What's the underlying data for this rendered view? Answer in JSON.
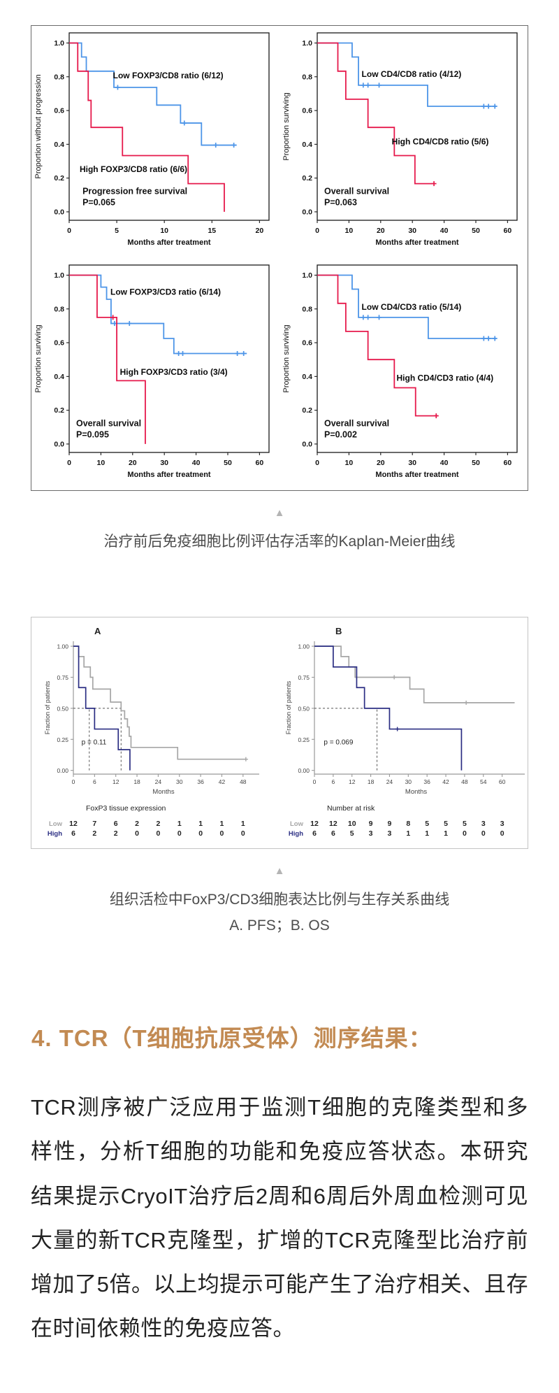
{
  "icons": {
    "scroll_up_triangle": "▲"
  },
  "colors": {
    "km_blue": "#4d95e8",
    "km_red": "#e6194b",
    "fig2_navy": "#2b2e83",
    "fig2_gray": "#a6a6a6",
    "heading_gold": "#c28a52",
    "caption_gray": "#4c4c4c",
    "triangle_gray": "#b4b4b4"
  },
  "figure1": {
    "caption": "治疗前后免疫细胞比例评估存活率的Kaplan-Meier曲线"
  },
  "figure2": {
    "caption_line1": "组织活检中FoxP3/CD3细胞表达比例与生存关系曲线",
    "caption_line2": "A. PFS；B. OS"
  },
  "section": {
    "heading": "4. TCR（T细胞抗原受体）测序结果：",
    "body": "TCR测序被广泛应用于监测T细胞的克隆类型和多样性，分析T细胞的功能和免疫应答状态。本研究结果提示CryoIT治疗后2周和6周后外周血检测可见大量的新TCR克隆型，扩增的TCR克隆型比治疗前增加了5倍。以上均提示可能产生了治疗相关、且存在时间依赖性的免疫应答。"
  },
  "chart_data": [
    {
      "id": "pfs-foxp3-cd8",
      "type": "line",
      "style": "km-boxed",
      "ylabel": "Proportion without progression",
      "xlabel": "Months after treatment",
      "xlim": [
        0,
        21
      ],
      "ylim": [
        0,
        1
      ],
      "ytick_decimals": 1,
      "xticks": [
        0,
        5,
        10,
        15,
        20
      ],
      "yticks": [
        0.0,
        0.2,
        0.4,
        0.6,
        0.8,
        1.0
      ],
      "series": [
        {
          "name": "Low FOXP3/CD8 ratio (6/12)",
          "color": "#4d95e8",
          "drops": [
            [
              0,
              1
            ],
            [
              1.3,
              0.917
            ],
            [
              1.8,
              0.833
            ],
            [
              4.7,
              0.737
            ],
            [
              9.2,
              0.632
            ],
            [
              11.7,
              0.526
            ],
            [
              13.9,
              0.395
            ]
          ],
          "end": 17.6,
          "censors": [
            [
              5.1,
              0.737
            ],
            [
              12.1,
              0.526
            ],
            [
              15.4,
              0.395
            ],
            [
              17.3,
              0.395
            ]
          ],
          "label": {
            "text": "Low FOXP3/CD8 ratio (6/12)",
            "x": 4.6,
            "y": 0.79
          }
        },
        {
          "name": "High FOXP3/CD8 ratio (6/6)",
          "color": "#e6194b",
          "drops": [
            [
              0,
              1
            ],
            [
              0.9,
              0.833
            ],
            [
              2.0,
              0.66
            ],
            [
              2.3,
              0.5
            ],
            [
              5.6,
              0.333
            ],
            [
              12.5,
              0.167
            ],
            [
              16.3,
              0
            ]
          ],
          "end": 16.3,
          "censors": [],
          "label": {
            "text": "High FOXP3/CD8 ratio (6/6)",
            "x": 1.1,
            "y": 0.235
          }
        }
      ],
      "note": {
        "lines": [
          "Progression free survival",
          "P=0.065"
        ],
        "x": 1.4,
        "y": 0.105
      }
    },
    {
      "id": "os-cd4-cd8",
      "type": "line",
      "style": "km-boxed",
      "ylabel": "Proportion surviving",
      "xlabel": "Months after treatment",
      "xlim": [
        0,
        63
      ],
      "ylim": [
        0,
        1
      ],
      "ytick_decimals": 1,
      "xticks": [
        0,
        10,
        20,
        30,
        40,
        50,
        60
      ],
      "yticks": [
        0.0,
        0.2,
        0.4,
        0.6,
        0.8,
        1.0
      ],
      "series": [
        {
          "name": "Low CD4/CD8 ratio (4/12)",
          "color": "#4d95e8",
          "drops": [
            [
              0,
              1
            ],
            [
              11,
              0.917
            ],
            [
              13,
              0.75
            ],
            [
              34.8,
              0.625
            ]
          ],
          "end": 56.5,
          "censors": [
            [
              14.5,
              0.75
            ],
            [
              16,
              0.75
            ],
            [
              19.5,
              0.75
            ],
            [
              52.5,
              0.625
            ],
            [
              54,
              0.625
            ],
            [
              56,
              0.625
            ]
          ],
          "label": {
            "text": "Low CD4/CD8 ratio (4/12)",
            "x": 14,
            "y": 0.8
          }
        },
        {
          "name": "High CD4/CD8 ratio (5/6)",
          "color": "#e6194b",
          "drops": [
            [
              0,
              1
            ],
            [
              6.5,
              0.833
            ],
            [
              9,
              0.667
            ],
            [
              16,
              0.5
            ],
            [
              24.3,
              0.333
            ],
            [
              30.8,
              0.167
            ]
          ],
          "end": 37,
          "censors": [
            [
              36.8,
              0.167
            ]
          ],
          "label": {
            "text": "High CD4/CD8 ratio (5/6)",
            "x": 23.5,
            "y": 0.4
          }
        }
      ],
      "note": {
        "lines": [
          "Overall survival",
          "P=0.063"
        ],
        "x": 2.2,
        "y": 0.105
      }
    },
    {
      "id": "os-foxp3-cd3",
      "type": "line",
      "style": "km-boxed",
      "ylabel": "Proportion surviving",
      "xlabel": "Months after treatment",
      "xlim": [
        0,
        63
      ],
      "ylim": [
        0,
        1
      ],
      "ytick_decimals": 1,
      "xticks": [
        0,
        10,
        20,
        30,
        40,
        50,
        60
      ],
      "yticks": [
        0.0,
        0.2,
        0.4,
        0.6,
        0.8,
        1.0
      ],
      "series": [
        {
          "name": "Low FOXP3/CD3 ratio (6/14)",
          "color": "#4d95e8",
          "drops": [
            [
              0,
              1
            ],
            [
              10,
              0.929
            ],
            [
              11.8,
              0.857
            ],
            [
              13.2,
              0.714
            ],
            [
              29.8,
              0.625
            ],
            [
              33,
              0.536
            ]
          ],
          "end": 56,
          "censors": [
            [
              14.3,
              0.714
            ],
            [
              19,
              0.714
            ],
            [
              34.5,
              0.536
            ],
            [
              35.8,
              0.536
            ],
            [
              53,
              0.536
            ],
            [
              55,
              0.536
            ]
          ],
          "label": {
            "text": "Low FOXP3/CD3 ratio (6/14)",
            "x": 13,
            "y": 0.885
          }
        },
        {
          "name": "High FOXP3/CD3 ratio (3/4)",
          "color": "#e6194b",
          "drops": [
            [
              0,
              1
            ],
            [
              8.8,
              0.75
            ],
            [
              15,
              0.375
            ],
            [
              24,
              0
            ]
          ],
          "end": 24,
          "censors": [
            [
              13.8,
              0.75
            ]
          ],
          "label": {
            "text": "High FOXP3/CD3 ratio (3/4)",
            "x": 16,
            "y": 0.41
          }
        }
      ],
      "note": {
        "lines": [
          "Overall survival",
          "P=0.095"
        ],
        "x": 2.2,
        "y": 0.105
      }
    },
    {
      "id": "os-cd4-cd3",
      "type": "line",
      "style": "km-boxed",
      "ylabel": "Proportion surviving",
      "xlabel": "Months after treatment",
      "xlim": [
        0,
        63
      ],
      "ylim": [
        0,
        1
      ],
      "ytick_decimals": 1,
      "xticks": [
        0,
        10,
        20,
        30,
        40,
        50,
        60
      ],
      "yticks": [
        0.0,
        0.2,
        0.4,
        0.6,
        0.8,
        1.0
      ],
      "series": [
        {
          "name": "Low CD4/CD3 ratio (5/14)",
          "color": "#4d95e8",
          "drops": [
            [
              0,
              1
            ],
            [
              11,
              0.917
            ],
            [
              13,
              0.75
            ],
            [
              35,
              0.625
            ]
          ],
          "end": 56.5,
          "censors": [
            [
              14.5,
              0.75
            ],
            [
              16,
              0.75
            ],
            [
              19.5,
              0.75
            ],
            [
              52.5,
              0.625
            ],
            [
              54,
              0.625
            ],
            [
              56,
              0.625
            ]
          ],
          "label": {
            "text": "Low CD4/CD3 ratio (5/14)",
            "x": 14,
            "y": 0.795
          }
        },
        {
          "name": "High CD4/CD3 ratio (4/4)",
          "color": "#e6194b",
          "drops": [
            [
              0,
              1
            ],
            [
              6.5,
              0.833
            ],
            [
              9,
              0.667
            ],
            [
              16,
              0.5
            ],
            [
              24.3,
              0.333
            ],
            [
              31,
              0.167
            ]
          ],
          "end": 38,
          "censors": [
            [
              37.5,
              0.167
            ]
          ],
          "label": {
            "text": "High CD4/CD3 ratio (4/4)",
            "x": 25,
            "y": 0.375
          }
        }
      ],
      "note": {
        "lines": [
          "Overall survival",
          "P=0.002"
        ],
        "x": 2.2,
        "y": 0.105
      }
    },
    {
      "id": "pfs-foxp3-tissue",
      "type": "line",
      "style": "km-open",
      "panel_letter": "A",
      "ylabel": "Fraction of patients",
      "xlabel": "Months",
      "xlim": [
        0,
        51
      ],
      "ylim": [
        0,
        1
      ],
      "ytick_decimals": 2,
      "xticks": [
        0,
        6,
        12,
        18,
        24,
        30,
        36,
        42,
        48
      ],
      "yticks": [
        0.0,
        0.25,
        0.5,
        0.75,
        1.0
      ],
      "series": [
        {
          "name": "Low",
          "color": "#a6a6a6",
          "drops": [
            [
              0,
              1
            ],
            [
              1.5,
              0.917
            ],
            [
              3,
              0.833
            ],
            [
              4.8,
              0.75
            ],
            [
              5.5,
              0.655
            ],
            [
              10.5,
              0.55
            ],
            [
              13.5,
              0.48
            ],
            [
              14.5,
              0.415
            ],
            [
              15.3,
              0.35
            ],
            [
              15.8,
              0.275
            ],
            [
              16.3,
              0.185
            ],
            [
              29.5,
              0.09
            ]
          ],
          "end": 48.8,
          "censors": [
            [
              48.8,
              0.09
            ]
          ]
        },
        {
          "name": "High",
          "color": "#2b2e83",
          "drops": [
            [
              0,
              1
            ],
            [
              1.5,
              0.667
            ],
            [
              3.5,
              0.5
            ],
            [
              6,
              0.333
            ],
            [
              12.7,
              0.167
            ],
            [
              16,
              0
            ]
          ],
          "end": 16,
          "censors": []
        }
      ],
      "dashes": [
        {
          "x1": 0,
          "y1": 0.5,
          "x2": 13.5,
          "y2": 0.5
        },
        {
          "x1": 4.5,
          "y1": 0,
          "x2": 4.5,
          "y2": 0.5
        },
        {
          "x1": 13.5,
          "y1": 0,
          "x2": 13.5,
          "y2": 0.5
        }
      ],
      "p_label": {
        "text": "p = 0.11",
        "x": 2.3,
        "y": 0.21
      },
      "risk_table": {
        "title": "FoxP3 tissue expression",
        "rows": [
          {
            "label": "Low",
            "color": "#a6a6a6",
            "values": [
              12,
              7,
              6,
              2,
              2,
              1,
              1,
              1,
              1
            ]
          },
          {
            "label": "High",
            "color": "#2b2e83",
            "values": [
              6,
              2,
              2,
              0,
              0,
              0,
              0,
              0,
              0
            ]
          }
        ]
      }
    },
    {
      "id": "os-foxp3-tissue",
      "type": "line",
      "style": "km-open",
      "panel_letter": "B",
      "ylabel": "Fraction of patients",
      "xlabel": "Months",
      "xlim": [
        0,
        65
      ],
      "ylim": [
        0,
        1
      ],
      "ytick_decimals": 2,
      "xticks": [
        0,
        6,
        12,
        18,
        24,
        30,
        36,
        42,
        48,
        54,
        60
      ],
      "yticks": [
        0.0,
        0.25,
        0.5,
        0.75,
        1.0
      ],
      "series": [
        {
          "name": "Low",
          "color": "#a6a6a6",
          "drops": [
            [
              0,
              1
            ],
            [
              8.5,
              0.917
            ],
            [
              11,
              0.833
            ],
            [
              13,
              0.75
            ],
            [
              30.5,
              0.655
            ],
            [
              35,
              0.545
            ]
          ],
          "end": 64,
          "censors": [
            [
              25.5,
              0.75
            ],
            [
              48.5,
              0.545
            ]
          ]
        },
        {
          "name": "High",
          "color": "#2b2e83",
          "drops": [
            [
              0,
              1
            ],
            [
              6,
              0.833
            ],
            [
              13.5,
              0.667
            ],
            [
              16,
              0.5
            ],
            [
              24,
              0.333
            ],
            [
              47,
              0
            ]
          ],
          "end": 47,
          "censors": [
            [
              26.5,
              0.333
            ]
          ]
        }
      ],
      "dashes": [
        {
          "x1": 0,
          "y1": 0.5,
          "x2": 16,
          "y2": 0.5
        },
        {
          "x1": 20,
          "y1": 0,
          "x2": 20,
          "y2": 0.5
        }
      ],
      "p_label": {
        "text": "p = 0.069",
        "x": 3,
        "y": 0.21
      },
      "risk_table": {
        "title": "Number at risk",
        "rows": [
          {
            "label": "Low",
            "color": "#a6a6a6",
            "values": [
              12,
              12,
              10,
              9,
              9,
              8,
              5,
              5,
              5,
              3,
              3
            ]
          },
          {
            "label": "High",
            "color": "#2b2e83",
            "values": [
              6,
              6,
              5,
              3,
              3,
              1,
              1,
              1,
              0,
              0,
              0
            ]
          }
        ]
      }
    }
  ]
}
